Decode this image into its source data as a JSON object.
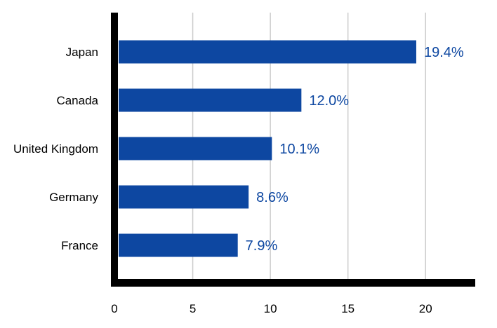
{
  "chart_data": {
    "type": "bar",
    "orientation": "horizontal",
    "categories": [
      "Japan",
      "Canada",
      "United Kingdom",
      "Germany",
      "France"
    ],
    "values": [
      19.4,
      12.0,
      10.1,
      8.6,
      7.9
    ],
    "data_labels": [
      "19.4%",
      "12.0%",
      "10.1%",
      "8.6%",
      "7.9%"
    ],
    "title": "",
    "xlabel": "",
    "ylabel": "",
    "xlim": [
      0,
      23.2
    ],
    "x_ticks": [
      0,
      5,
      10,
      15,
      20
    ],
    "x_tick_labels": [
      "0",
      "5",
      "10",
      "15",
      "20"
    ],
    "grid": "vertical",
    "legend": "none",
    "colors": {
      "bar": "#0d47a1",
      "data_label": "#0d47a1",
      "grid": "#cccccc",
      "axis": "#000000"
    }
  }
}
